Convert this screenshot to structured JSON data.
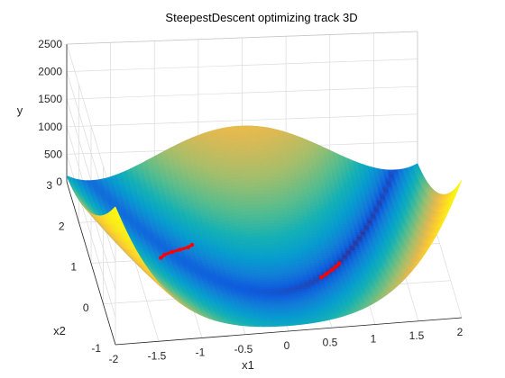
{
  "chart_data": {
    "type": "surface3d",
    "title": "SteepestDescent optimizing track 3D",
    "xlabel": "x1",
    "ylabel": "x2",
    "zlabel": "y",
    "xlim": [
      -2,
      2
    ],
    "ylim": [
      -1,
      3
    ],
    "zlim": [
      0,
      2500
    ],
    "xticks": [
      "-2",
      "-1.5",
      "-1",
      "-0.5",
      "0",
      "0.5",
      "1",
      "1.5",
      "2"
    ],
    "yticks": [
      "-1",
      "0",
      "1",
      "2",
      "3"
    ],
    "zticks": [
      "0",
      "500",
      "1000",
      "1500",
      "2000",
      "2500"
    ],
    "surface": {
      "function": "rosenbrock",
      "colormap": "parula"
    },
    "track": {
      "color": "#ff0000",
      "segments": [
        {
          "x": [
            -1.2,
            -1.15,
            -1.05,
            -0.95,
            -0.85,
            -0.8
          ],
          "y": [
            1.0,
            1.08,
            1.15,
            1.2,
            1.25,
            1.3
          ],
          "z": [
            24,
            18,
            12,
            9,
            8,
            9
          ]
        },
        {
          "x": [
            0.55,
            0.62,
            0.7,
            0.75,
            0.8
          ],
          "y": [
            0.3,
            0.38,
            0.48,
            0.55,
            0.63
          ],
          "z": [
            2,
            1,
            0.5,
            0.3,
            0.2
          ]
        }
      ]
    },
    "grid": true
  }
}
